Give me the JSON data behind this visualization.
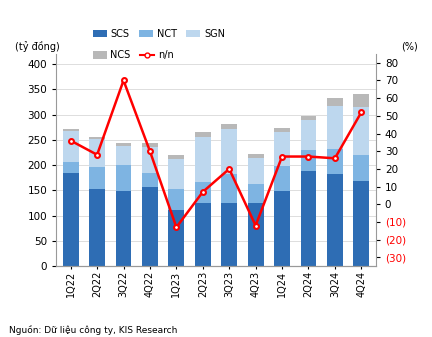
{
  "categories": [
    "1Q22",
    "2Q22",
    "3Q22",
    "4Q22",
    "1Q23",
    "2Q23",
    "3Q23",
    "4Q23",
    "1Q24",
    "2Q24",
    "3Q24",
    "4Q24"
  ],
  "SCS": [
    185,
    152,
    148,
    157,
    112,
    125,
    125,
    125,
    148,
    188,
    182,
    168
  ],
  "NCT": [
    22,
    45,
    52,
    27,
    40,
    42,
    58,
    38,
    50,
    42,
    50,
    52
  ],
  "SGN": [
    60,
    55,
    38,
    52,
    60,
    88,
    88,
    52,
    68,
    60,
    85,
    95
  ],
  "NCS": [
    5,
    4,
    6,
    8,
    8,
    10,
    10,
    8,
    8,
    8,
    15,
    25
  ],
  "nn": [
    36,
    28,
    70,
    30,
    -13,
    7,
    20,
    -12,
    27,
    27,
    26,
    52
  ],
  "left_label": "(tỷ đồng)",
  "right_label": "(%)",
  "ylim_left": [
    0,
    420
  ],
  "ylim_right": [
    -35,
    85
  ],
  "yticks_left": [
    0,
    50,
    100,
    150,
    200,
    250,
    300,
    350,
    400
  ],
  "yticks_right": [
    -30,
    -20,
    -10,
    0,
    10,
    20,
    30,
    40,
    50,
    60,
    70,
    80
  ],
  "color_SCS": "#2E6DB4",
  "color_NCT": "#7EB4E2",
  "color_SGN": "#BDD7EE",
  "color_NCS": "#B8B8B8",
  "color_line": "#FF0000",
  "bg_color": "#FFFFFF",
  "grid_color": "#D0D0D0",
  "footer": "Nguồn: Dữ liệu công ty, KIS Research"
}
